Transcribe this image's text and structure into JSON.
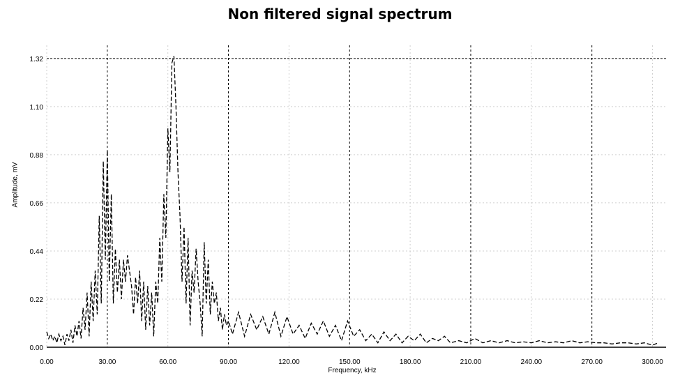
{
  "chart_data": {
    "type": "line",
    "title": "Non filtered signal spectrum",
    "xlabel": "Frequency, kHz",
    "ylabel": "Amplitude, mV",
    "xlim": [
      0,
      305
    ],
    "ylim": [
      0,
      1.38
    ],
    "x_ticks": [
      0,
      30,
      60,
      90,
      120,
      150,
      180,
      210,
      240,
      270,
      300
    ],
    "x_tick_labels": [
      "0.00",
      "30.00",
      "60.00",
      "90.00",
      "120.00",
      "150.00",
      "180.00",
      "210.00",
      "240.00",
      "270.00",
      "300.00"
    ],
    "y_ticks": [
      0,
      0.22,
      0.44,
      0.66,
      0.88,
      1.1,
      1.32
    ],
    "y_tick_labels": [
      "0.00",
      "0.22",
      "0.44",
      "0.66",
      "0.88",
      "1.10",
      "1.32"
    ],
    "grid": true,
    "series": [
      {
        "color": "#000000",
        "x": [
          0,
          1,
          2,
          3,
          4,
          5,
          6,
          7,
          8,
          9,
          10,
          11,
          12,
          13,
          14,
          15,
          16,
          17,
          18,
          19,
          20,
          21,
          22,
          23,
          24,
          25,
          26,
          27,
          28,
          29,
          30,
          31,
          32,
          33,
          34,
          35,
          36,
          37,
          38,
          39,
          40,
          41,
          42,
          43,
          44,
          45,
          46,
          47,
          48,
          49,
          50,
          51,
          52,
          53,
          54,
          55,
          56,
          57,
          58,
          59,
          60,
          61,
          62,
          63,
          64,
          65,
          66,
          67,
          68,
          69,
          70,
          71,
          72,
          73,
          74,
          75,
          76,
          77,
          78,
          79,
          80,
          81,
          82,
          83,
          84,
          85,
          86,
          87,
          88,
          89,
          90,
          92,
          95,
          98,
          101,
          104,
          107,
          110,
          113,
          116,
          119,
          122,
          125,
          128,
          131,
          134,
          137,
          140,
          143,
          146,
          149,
          152,
          155,
          158,
          161,
          164,
          167,
          170,
          173,
          176,
          179,
          182,
          185,
          188,
          191,
          194,
          197,
          200,
          204,
          208,
          212,
          216,
          220,
          224,
          228,
          232,
          236,
          240,
          244,
          248,
          252,
          256,
          260,
          264,
          268,
          272,
          276,
          280,
          284,
          288,
          292,
          296,
          300,
          303
        ],
        "values": [
          0.07,
          0.04,
          0.06,
          0.03,
          0.05,
          0.02,
          0.06,
          0.03,
          0.05,
          0.01,
          0.06,
          0.03,
          0.08,
          0.02,
          0.1,
          0.05,
          0.12,
          0.04,
          0.18,
          0.08,
          0.25,
          0.05,
          0.3,
          0.12,
          0.35,
          0.15,
          0.6,
          0.2,
          0.85,
          0.4,
          0.9,
          0.3,
          0.7,
          0.2,
          0.45,
          0.25,
          0.4,
          0.22,
          0.4,
          0.3,
          0.42,
          0.35,
          0.28,
          0.15,
          0.32,
          0.2,
          0.35,
          0.12,
          0.3,
          0.08,
          0.28,
          0.1,
          0.25,
          0.05,
          0.3,
          0.2,
          0.5,
          0.3,
          0.7,
          0.5,
          1.0,
          0.8,
          1.3,
          1.33,
          1.1,
          0.8,
          0.6,
          0.3,
          0.55,
          0.2,
          0.5,
          0.1,
          0.35,
          0.25,
          0.45,
          0.3,
          0.2,
          0.05,
          0.48,
          0.2,
          0.4,
          0.15,
          0.3,
          0.2,
          0.25,
          0.12,
          0.18,
          0.08,
          0.15,
          0.1,
          0.12,
          0.06,
          0.16,
          0.05,
          0.15,
          0.08,
          0.14,
          0.06,
          0.16,
          0.05,
          0.14,
          0.06,
          0.1,
          0.04,
          0.11,
          0.06,
          0.12,
          0.05,
          0.1,
          0.03,
          0.12,
          0.05,
          0.08,
          0.03,
          0.06,
          0.02,
          0.07,
          0.03,
          0.06,
          0.02,
          0.05,
          0.03,
          0.06,
          0.02,
          0.04,
          0.03,
          0.05,
          0.02,
          0.03,
          0.02,
          0.04,
          0.02,
          0.03,
          0.02,
          0.03,
          0.02,
          0.025,
          0.02,
          0.03,
          0.02,
          0.025,
          0.02,
          0.03,
          0.02,
          0.025,
          0.02,
          0.02,
          0.015,
          0.02,
          0.02,
          0.015,
          0.02,
          0.01,
          0.02
        ]
      }
    ]
  }
}
